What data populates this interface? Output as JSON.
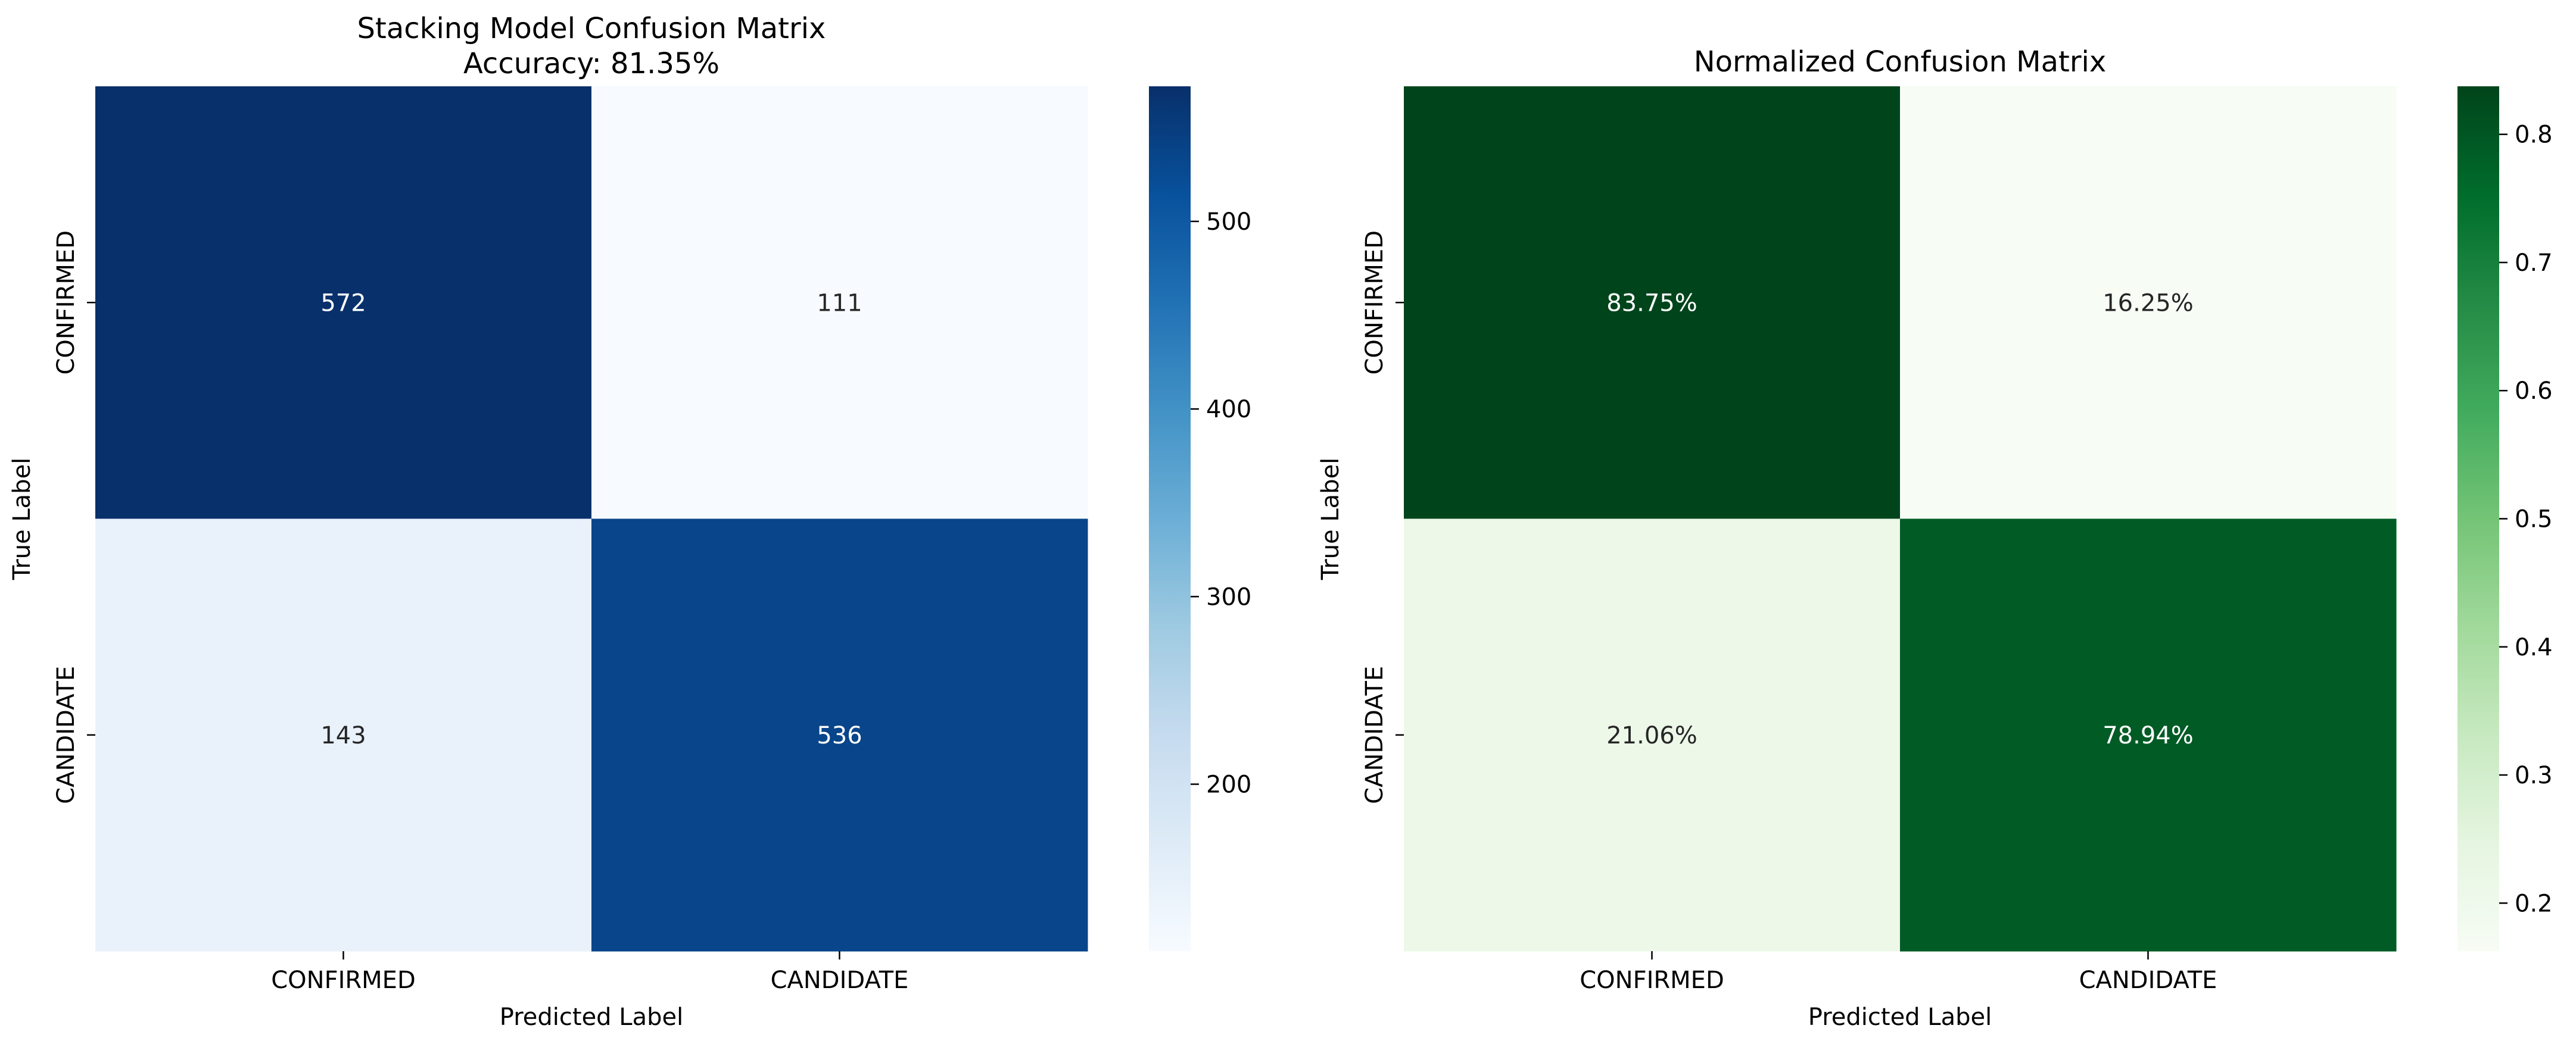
{
  "chart_data": [
    {
      "type": "heatmap",
      "title": "Stacking Model Confusion Matrix",
      "subtitle": "Accuracy: 81.35%",
      "xlabel": "Predicted Label",
      "ylabel": "True Label",
      "x_categories": [
        "CONFIRMED",
        "CANDIDATE"
      ],
      "y_categories": [
        "CONFIRMED",
        "CANDIDATE"
      ],
      "values": [
        [
          572,
          111
        ],
        [
          143,
          536
        ]
      ],
      "cell_labels": [
        [
          "572",
          "111"
        ],
        [
          "143",
          "536"
        ]
      ],
      "colormap": "Blues",
      "colorbar": {
        "range": [
          111,
          572
        ],
        "ticks": [
          200,
          300,
          400,
          500
        ],
        "tick_labels": [
          "200",
          "300",
          "400",
          "500"
        ]
      }
    },
    {
      "type": "heatmap",
      "title": "Normalized Confusion Matrix",
      "xlabel": "Predicted Label",
      "ylabel": "True Label",
      "x_categories": [
        "CONFIRMED",
        "CANDIDATE"
      ],
      "y_categories": [
        "CONFIRMED",
        "CANDIDATE"
      ],
      "values": [
        [
          0.8375,
          0.1625
        ],
        [
          0.2106,
          0.7894
        ]
      ],
      "cell_labels": [
        [
          "83.75%",
          "16.25%"
        ],
        [
          "21.06%",
          "78.94%"
        ]
      ],
      "colormap": "Greens",
      "colorbar": {
        "range": [
          0.1625,
          0.8375
        ],
        "ticks": [
          0.2,
          0.3,
          0.4,
          0.5,
          0.6,
          0.7,
          0.8
        ],
        "tick_labels": [
          "0.2",
          "0.3",
          "0.4",
          "0.5",
          "0.6",
          "0.7",
          "0.8"
        ]
      }
    }
  ]
}
